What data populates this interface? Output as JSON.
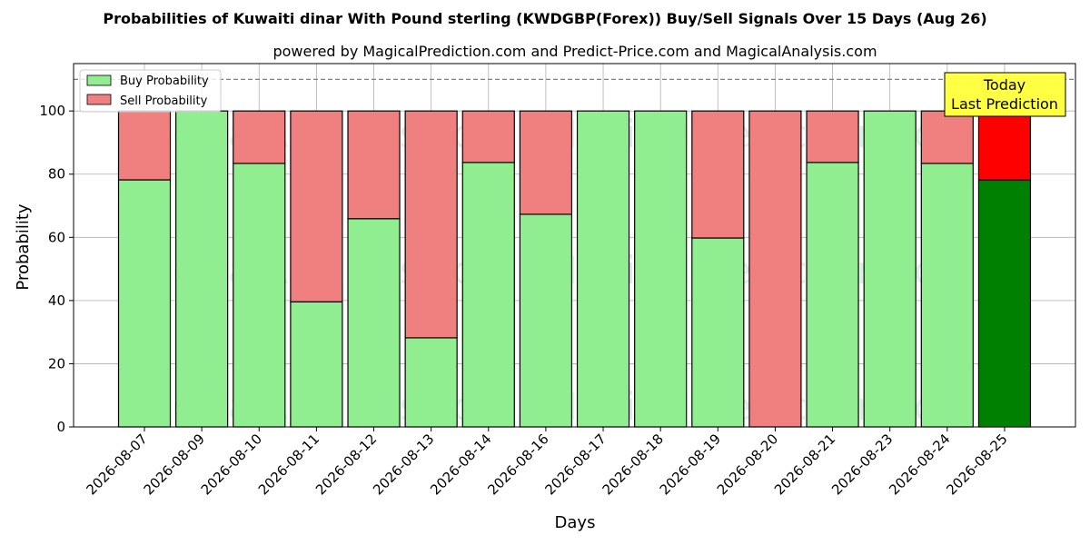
{
  "chart_data": {
    "type": "bar",
    "stacked": true,
    "title": "Probabilities of Kuwaiti dinar With Pound sterling (KWDGBP(Forex)) Buy/Sell Signals Over 15 Days (Aug 26)",
    "subtitle": "powered by MagicalPrediction.com and Predict-Price.com and MagicalAnalysis.com",
    "xlabel": "Days",
    "ylabel": "Probability",
    "ylim": [
      0,
      115
    ],
    "yticks": [
      0,
      20,
      40,
      60,
      80,
      100
    ],
    "reference_line": 110,
    "grid": true,
    "legend_position": "top-left",
    "categories": [
      "2026-08-07",
      "2026-08-09",
      "2026-08-10",
      "2026-08-11",
      "2026-08-12",
      "2026-08-13",
      "2026-08-14",
      "2026-08-16",
      "2026-08-17",
      "2026-08-18",
      "2026-08-19",
      "2026-08-20",
      "2026-08-21",
      "2026-08-23",
      "2026-08-24",
      "2026-08-25"
    ],
    "series": [
      {
        "name": "Buy Probability",
        "color": "#90ee90",
        "highlight_color": "#008000",
        "values": [
          78.2,
          100,
          83.4,
          39.6,
          65.9,
          28.2,
          83.7,
          67.3,
          100,
          100,
          59.8,
          0,
          83.7,
          100,
          83.4,
          78.2
        ]
      },
      {
        "name": "Sell Probability",
        "color": "#f08080",
        "highlight_color": "#ff0000",
        "values": [
          21.8,
          0,
          16.6,
          60.4,
          34.1,
          71.8,
          16.3,
          32.7,
          0,
          0,
          40.2,
          100,
          16.3,
          0,
          16.6,
          21.8
        ]
      }
    ],
    "highlight_index": 15,
    "annotation": {
      "line1": "Today",
      "line2": "Last Prediction",
      "color": "#ffff44"
    },
    "watermarks": [
      "MagicalAnalysis.com",
      "MagicalPrediction.com"
    ]
  }
}
